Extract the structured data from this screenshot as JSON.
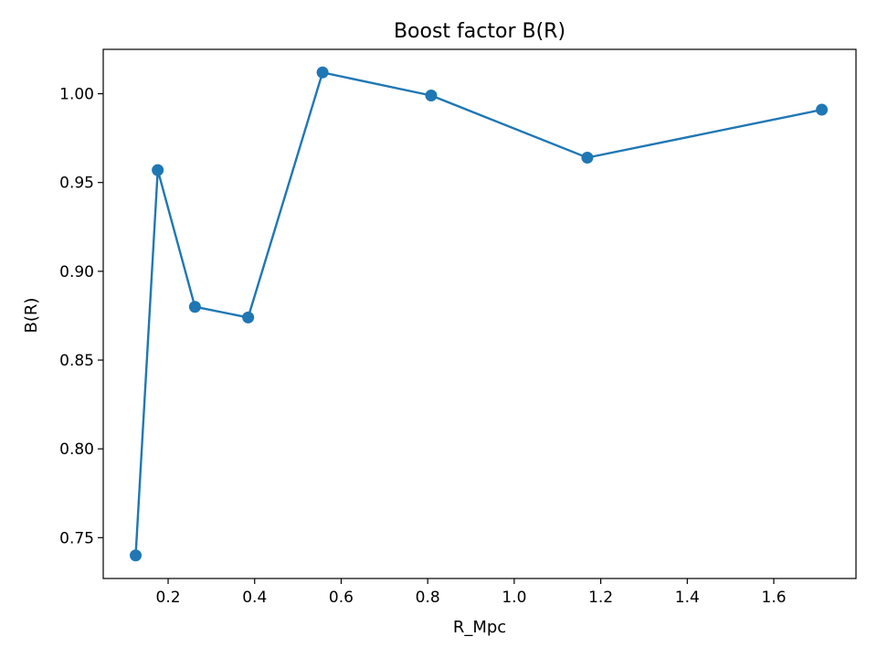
{
  "chart_data": {
    "type": "line",
    "title": "Boost factor B(R)",
    "xlabel": "R_Mpc",
    "ylabel": "B(R)",
    "xlim": [
      0.05,
      1.79
    ],
    "ylim": [
      0.727,
      1.025
    ],
    "xticks": [
      0.2,
      0.4,
      0.6,
      0.8,
      1.0,
      1.2,
      1.4,
      1.6
    ],
    "xtick_labels": [
      "0.2",
      "0.4",
      "0.6",
      "0.8",
      "1.0",
      "1.2",
      "1.4",
      "1.6"
    ],
    "yticks": [
      0.75,
      0.8,
      0.85,
      0.9,
      0.95,
      1.0
    ],
    "ytick_labels": [
      "0.75",
      "0.80",
      "0.85",
      "0.90",
      "0.95",
      "1.00"
    ],
    "grid": false,
    "series": [
      {
        "color": "#1f77b4",
        "marker": "circle",
        "x": [
          0.125,
          0.176,
          0.262,
          0.385,
          0.557,
          0.808,
          1.169,
          1.711
        ],
        "y": [
          0.74,
          0.957,
          0.88,
          0.874,
          1.012,
          0.999,
          0.964,
          0.991
        ]
      }
    ]
  }
}
